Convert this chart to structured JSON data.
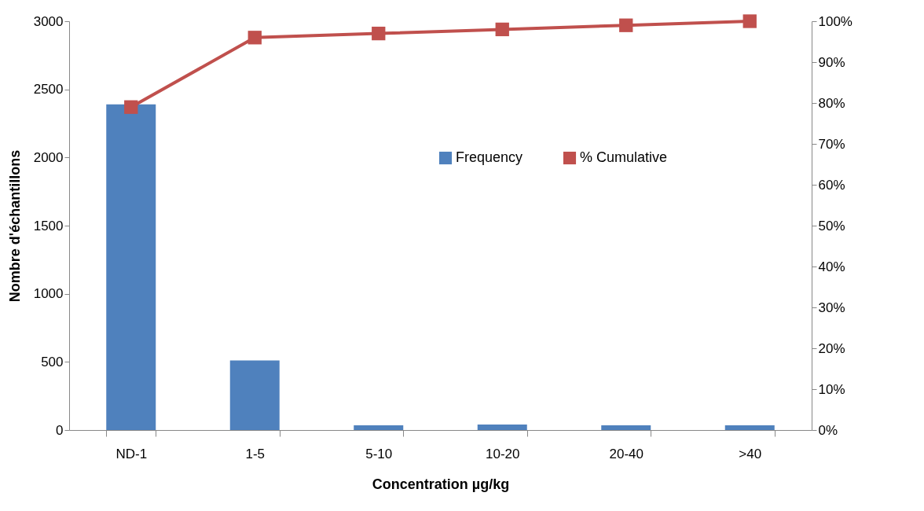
{
  "chart_data": {
    "type": "bar",
    "xlabel": "Concentration µg/kg",
    "ylabel": "Nombre d'échantillons",
    "categories": [
      "ND-1",
      "1-5",
      "5-10",
      "10-20",
      "20-40",
      ">40"
    ],
    "series": [
      {
        "name": "Frequency",
        "color": "#4f81bd",
        "values": [
          2390,
          510,
          35,
          40,
          35,
          35
        ]
      },
      {
        "name": "% Cumulative",
        "type": "line",
        "axis": "y2",
        "color": "#c0504d",
        "marker": "square",
        "values": [
          79,
          96,
          97,
          98,
          99,
          100
        ]
      }
    ],
    "ylim": [
      0,
      3000
    ],
    "yticks": [
      0,
      500,
      1000,
      1500,
      2000,
      2500,
      3000
    ],
    "y2lim": [
      0,
      100
    ],
    "y2ticks": [
      {
        "value": 0,
        "label": "0%"
      },
      {
        "value": 10,
        "label": "10%"
      },
      {
        "value": 20,
        "label": "20%"
      },
      {
        "value": 30,
        "label": "30%"
      },
      {
        "value": 40,
        "label": "40%"
      },
      {
        "value": 50,
        "label": "50%"
      },
      {
        "value": 60,
        "label": "60%"
      },
      {
        "value": 70,
        "label": "70%"
      },
      {
        "value": 80,
        "label": "80%"
      },
      {
        "value": 90,
        "label": "90%"
      },
      {
        "value": 100,
        "label": "100%"
      }
    ],
    "legend": "top right",
    "grid": false
  }
}
